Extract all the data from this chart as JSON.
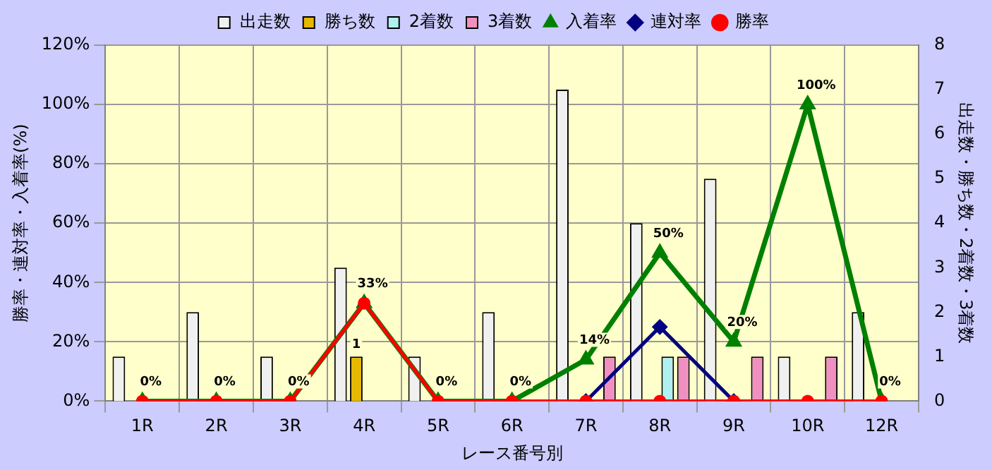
{
  "chart_data": {
    "type": "bar",
    "xlabel": "レース番号別",
    "ylabel": "勝率・連対率・入着率(%)",
    "y2label": "出走数・勝ち数・2着数・3着数",
    "categories": [
      "1R",
      "2R",
      "3R",
      "4R",
      "5R",
      "6R",
      "7R",
      "8R",
      "9R",
      "10R",
      "12R"
    ],
    "series": [
      {
        "name": "出走数",
        "axis": "y2",
        "color": "#f0f0f0",
        "values": [
          1,
          2,
          1,
          3,
          1,
          2,
          7,
          4,
          5,
          1,
          2
        ]
      },
      {
        "name": "勝ち数",
        "axis": "y2",
        "color": "#e6b800",
        "values": [
          0,
          0,
          0,
          1,
          0,
          0,
          0,
          0,
          0,
          0,
          0
        ],
        "value_labels": [
          null,
          null,
          null,
          "1",
          null,
          null,
          null,
          null,
          null,
          null,
          null
        ]
      },
      {
        "name": "2着数",
        "axis": "y2",
        "color": "#b0f0f0",
        "values": [
          0,
          0,
          0,
          0,
          0,
          0,
          0,
          1,
          0,
          0,
          0
        ]
      },
      {
        "name": "3着数",
        "axis": "y2",
        "color": "#f090c0",
        "values": [
          0,
          0,
          0,
          0,
          0,
          0,
          1,
          1,
          1,
          1,
          0
        ]
      },
      {
        "name": "入着率",
        "type": "line",
        "marker": "triangle",
        "color": "#008000",
        "values": [
          0,
          0,
          0,
          33,
          0,
          0,
          14,
          50,
          20,
          100,
          0
        ],
        "value_labels": [
          "0%",
          "0%",
          "0%",
          "33%",
          "0%",
          "0%",
          "14%",
          "50%",
          "20%",
          "100%",
          "0%"
        ]
      },
      {
        "name": "連対率",
        "type": "line",
        "marker": "diamond",
        "color": "#000080",
        "values": [
          null,
          null,
          null,
          null,
          null,
          null,
          0,
          25,
          0,
          null,
          null
        ]
      },
      {
        "name": "勝率",
        "type": "line",
        "marker": "circle",
        "color": "#ff0000",
        "values": [
          0,
          0,
          0,
          33,
          0,
          0,
          0,
          0,
          0,
          0,
          0
        ]
      }
    ],
    "ylim": [
      0,
      120
    ],
    "yticks": [
      {
        "value": 0,
        "label": "0%"
      },
      {
        "value": 20,
        "label": "20%"
      },
      {
        "value": 40,
        "label": "40%"
      },
      {
        "value": 60,
        "label": "60%"
      },
      {
        "value": 80,
        "label": "80%"
      },
      {
        "value": 100,
        "label": "100%"
      },
      {
        "value": 120,
        "label": "120%"
      }
    ],
    "y2lim": [
      0,
      8
    ],
    "y2ticks": [
      0,
      1,
      2,
      3,
      4,
      5,
      6,
      7,
      8
    ],
    "grid": true,
    "legend": "top"
  }
}
